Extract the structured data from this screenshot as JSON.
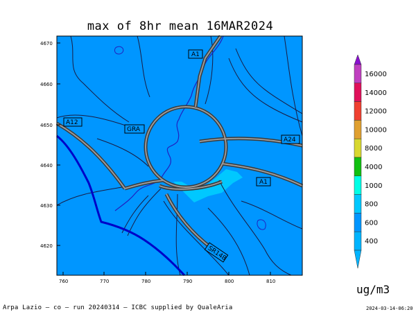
{
  "title": "max of 8hr mean 16MAR2024",
  "units": "ug/m3",
  "footer": "Arpa Lazio — co — run 20240314 — ICBC supplied by QualeAria",
  "timestamp": "2024-03-14-06:20",
  "axes": {
    "x_ticks": [
      "760",
      "770",
      "780",
      "790",
      "800",
      "810"
    ],
    "y_ticks": [
      "4670",
      "4660",
      "4650",
      "4640",
      "4630",
      "4620"
    ]
  },
  "colorbar": {
    "labels": [
      "16000",
      "14000",
      "12000",
      "10000",
      "8000",
      "4000",
      "1000",
      "800",
      "600",
      "400"
    ],
    "colors": [
      "#8a0fd0",
      "#c03fc0",
      "#e0105a",
      "#f04030",
      "#e0a030",
      "#d8d830",
      "#10c010",
      "#00ffe6",
      "#00c8ff",
      "#0096ff",
      "#00b4ff"
    ]
  },
  "field_colors": {
    "background": "#0096ff",
    "high": "#00c8ff"
  },
  "road_labels": [
    "A1",
    "A12",
    "GRA",
    "A24",
    "A1",
    "SR148"
  ]
}
